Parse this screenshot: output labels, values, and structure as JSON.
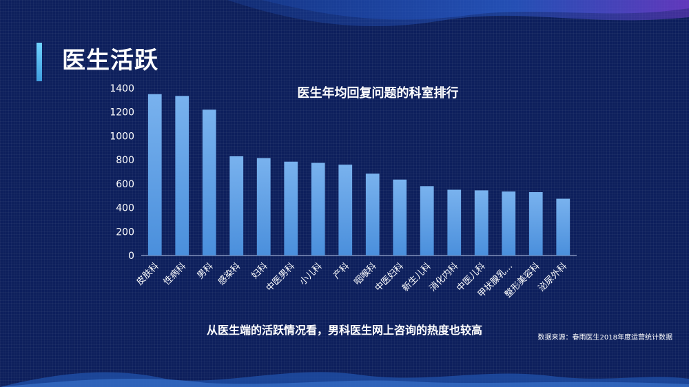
{
  "page": {
    "title": "医生活跃",
    "summary": "从医生端的活跃情况看，男科医生网上咨询的热度也较高",
    "source": "数据来源：春雨医生2018年度运营统计数据"
  },
  "chart_data": {
    "type": "bar",
    "title": "医生年均回复问题的科室排行",
    "xlabel": "",
    "ylabel": "",
    "categories": [
      "皮肤科",
      "性病科",
      "男科",
      "感染科",
      "妇科",
      "中医男科",
      "小儿科",
      "产科",
      "咽喉科",
      "中医妇科",
      "新生儿科",
      "消化内科",
      "中医儿科",
      "甲状腺乳...",
      "整形美容科",
      "泌尿外科"
    ],
    "values": [
      1350,
      1335,
      1220,
      830,
      815,
      785,
      775,
      760,
      685,
      635,
      580,
      550,
      545,
      535,
      530,
      475
    ],
    "ylim": [
      0,
      1400
    ],
    "yticks": [
      0,
      200,
      400,
      600,
      800,
      1000,
      1200,
      1400
    ],
    "grid": false,
    "colors": {
      "bar_top": "#79b2ee",
      "bar_bottom": "#4a8fdc",
      "axis": "#b9c7ea",
      "accent": "#5bc0f0"
    }
  }
}
